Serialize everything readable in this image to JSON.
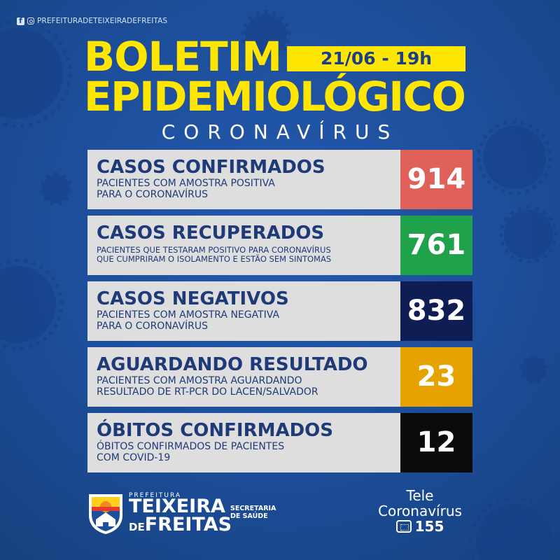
{
  "social": {
    "handle": "PREFEITURADETEIXEIRADEFREITAS",
    "icons": [
      "facebook-icon",
      "instagram-icon"
    ]
  },
  "header": {
    "title_line1": "BOLETIM",
    "title_line2": "EPIDEMIOLÓGICO",
    "date": "21/06 - 19h",
    "subtitle": "CORONAVÍRUS"
  },
  "stats": [
    {
      "title": "CASOS CONFIRMADOS",
      "desc1": "PACIENTES COM AMOSTRA POSITIVA",
      "desc2": "PARA O CORONAVÍRUS",
      "value": "914",
      "color": "#e0605a"
    },
    {
      "title": "CASOS RECUPERADOS",
      "desc1": "PACIENTES QUE TESTARAM POSITIVO PARA CORONAVÍRUS",
      "desc2": "QUE CUMPRIRAM O ISOLAMENTO E ESTÃO SEM SINTOMAS",
      "value": "761",
      "color": "#1fa24a"
    },
    {
      "title": "CASOS NEGATIVOS",
      "desc1": "PACIENTES COM AMOSTRA NEGATIVA",
      "desc2": "PARA O CORONAVÍRUS",
      "value": "832",
      "color": "#0e1e55"
    },
    {
      "title": "AGUARDANDO RESULTADO",
      "desc1": "PACIENTES COM AMOSTRA AGUARDANDO",
      "desc2": "RESULTADO DE RT-PCR DO LACEN/SALVADOR",
      "value": "23",
      "color": "#e6a300"
    },
    {
      "title": "ÓBITOS CONFIRMADOS",
      "desc1": "ÓBITOS CONFIRMADOS DE PACIENTES",
      "desc2": "COM COVID-19",
      "value": "12",
      "color": "#0b0b0b"
    }
  ],
  "footer": {
    "prefeitura": "PREFEITURA",
    "city_line1": "TEIXEIRA",
    "city_de": "DE",
    "city_line2": "FREITAS",
    "secretaria_line1": "SECRETARIA",
    "secretaria_line2": "DE SAÚDE",
    "tele_line1": "Tele",
    "tele_line2": "Coronavírus",
    "tele_number": "155"
  },
  "colors": {
    "background": "#1d4f9c",
    "accent": "#ffe600",
    "label_bg": "#dedede",
    "label_text": "#1f3a78"
  }
}
